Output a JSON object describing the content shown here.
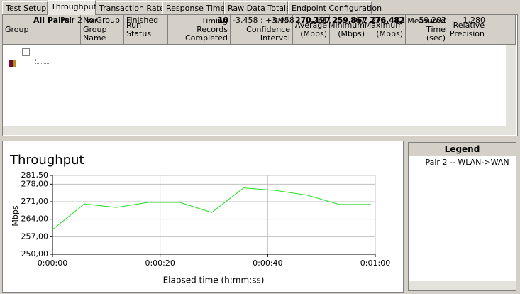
{
  "tabs": [
    "Test Setup",
    "Throughput",
    "Transaction Rate",
    "Response Time",
    "Raw Data Totals",
    "Endpoint Configuration"
  ],
  "table": {
    "headers": [
      "Group",
      "Pair Group Name",
      "Run Status",
      "Timing Records Completed",
      "95% Confidence Interval",
      "Average (Mbps)",
      "Minimum (Mbps)",
      "Maximum (Mbps)",
      "Measured Time (sec)",
      "Relative Precision"
    ],
    "rows": [
      [
        "All Pairs",
        "",
        "",
        "10",
        "",
        "270,197",
        "259,867",
        "276,482",
        "",
        ""
      ],
      [
        "Pair 2",
        "No Group",
        "Finished",
        "10",
        "-3,458 : +3,458",
        "270,261",
        "259,867",
        "276,482",
        "59,202",
        "1,280"
      ]
    ]
  },
  "legend": {
    "title": "Legend"
  },
  "chart_data": {
    "type": "line",
    "title": "Throughput",
    "ylabel": "Mbps",
    "xlabel": "Elapsed time (h:mm:ss)",
    "x": [
      0,
      5.92,
      11.84,
      17.76,
      23.68,
      29.6,
      35.52,
      41.44,
      47.36,
      53.28,
      59.2
    ],
    "series": [
      {
        "name": "Pair 2 -- WLAN->WAN",
        "color": "#22dd22",
        "values": [
          259.867,
          270.1,
          268.7,
          270.7,
          270.7,
          266.7,
          276.482,
          275.5,
          273.6,
          269.9,
          269.9
        ]
      }
    ],
    "xlim": [
      0,
      60
    ],
    "xticks": [
      {
        "value": 0,
        "label": "0:00:00"
      },
      {
        "value": 20,
        "label": "0:00:20"
      },
      {
        "value": 40,
        "label": "0:00:40"
      },
      {
        "value": 60,
        "label": "0:01:00"
      }
    ],
    "ylim": [
      250,
      281.5
    ],
    "yticks": [
      {
        "value": 250,
        "label": "250,00"
      },
      {
        "value": 257,
        "label": "257,00"
      },
      {
        "value": 264,
        "label": "264,00"
      },
      {
        "value": 271,
        "label": "271,00"
      },
      {
        "value": 278,
        "label": "278,00"
      },
      {
        "value": 281.5,
        "label": "281,50"
      }
    ],
    "grid": true
  }
}
